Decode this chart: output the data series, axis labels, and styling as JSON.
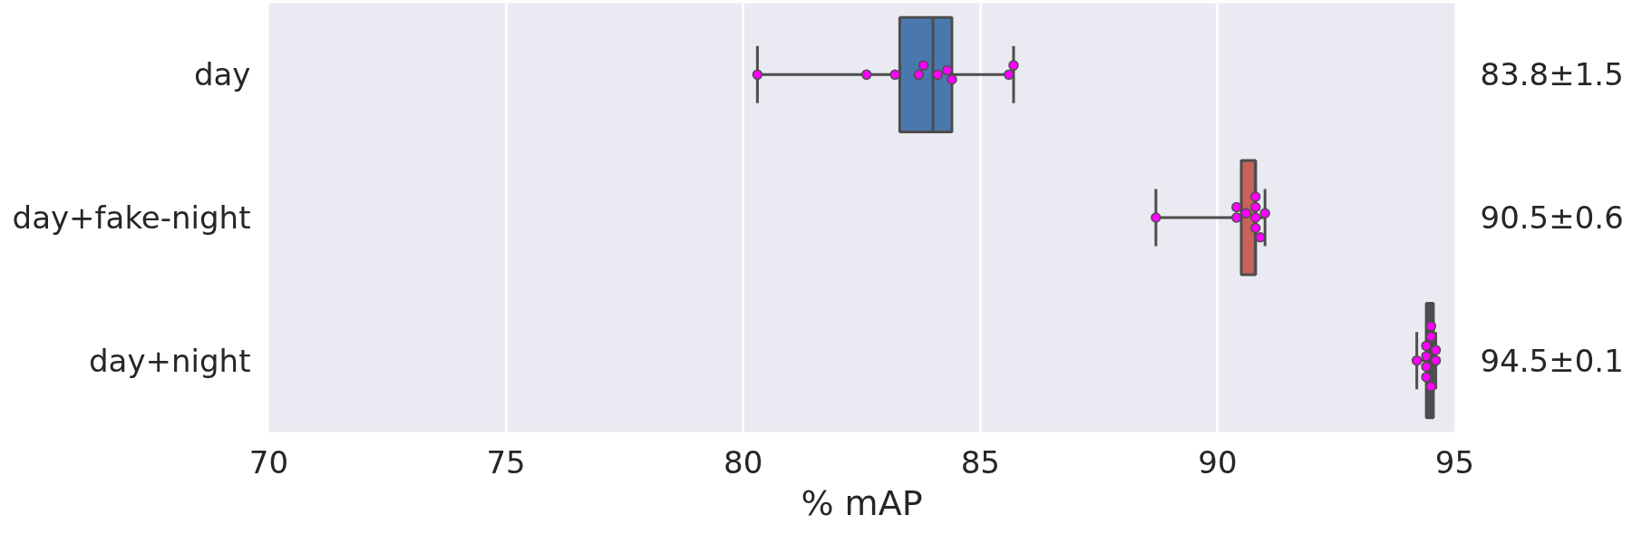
{
  "chart_data": {
    "type": "box",
    "orientation": "horizontal",
    "categories": [
      "day",
      "day+fake-night",
      "day+night"
    ],
    "boxes": [
      {
        "low": 80.3,
        "q1": 83.3,
        "median": 84.0,
        "q3": 84.4,
        "high": 85.7
      },
      {
        "low": 88.7,
        "q1": 90.5,
        "median": 90.8,
        "q3": 90.8,
        "high": 91.0
      },
      {
        "low": 94.2,
        "q1": 94.4,
        "median": 94.5,
        "q3": 94.55,
        "high": 94.6
      }
    ],
    "colors": [
      "#4a78ae",
      "#c8625a",
      "#4d4d4d"
    ],
    "series": [
      {
        "type": "scatter",
        "color": "#ff00ff",
        "marker": "circle",
        "x": [
          "day",
          "day",
          "day",
          "day",
          "day",
          "day",
          "day",
          "day",
          "day",
          "day",
          "day+fake-night",
          "day+fake-night",
          "day+fake-night",
          "day+fake-night",
          "day+fake-night",
          "day+fake-night",
          "day+fake-night",
          "day+fake-night",
          "day+fake-night",
          "day+fake-night",
          "day+night",
          "day+night",
          "day+night",
          "day+night",
          "day+night",
          "day+night",
          "day+night",
          "day+night",
          "day+night",
          "day+night"
        ],
        "values": [
          80.3,
          82.6,
          83.2,
          83.7,
          83.8,
          84.1,
          84.3,
          84.4,
          85.6,
          85.7,
          88.7,
          90.4,
          90.4,
          90.6,
          90.8,
          90.8,
          90.8,
          90.8,
          90.9,
          91.0,
          94.2,
          94.4,
          94.4,
          94.4,
          94.4,
          94.5,
          94.5,
          94.5,
          94.6,
          94.6
        ]
      }
    ],
    "xlabel": "% mAP",
    "xlim": [
      70,
      95
    ],
    "xticks": [
      70,
      75,
      80,
      85,
      90,
      95
    ],
    "grid": "x",
    "annotations": [
      "83.8±1.5",
      "90.5±0.6",
      "94.5±0.1"
    ]
  }
}
